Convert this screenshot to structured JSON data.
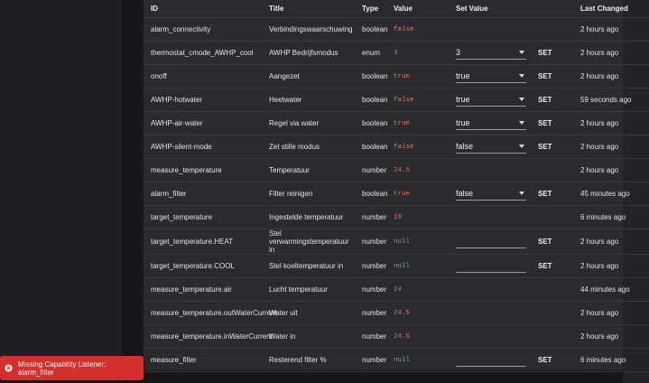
{
  "columns": {
    "id": "ID",
    "title": "Title",
    "type": "Type",
    "value": "Value",
    "set_value": "Set Value",
    "last_changed": "Last Changed"
  },
  "set_label": "SET",
  "rows": [
    {
      "id": "alarm_connectivity",
      "title": "Verbindingswaarschuwing",
      "type": "boolean",
      "value": "false",
      "select": "",
      "last": "2 hours ago"
    },
    {
      "id": "thermostat_cmode_AWHP_cool",
      "title": "AWHP Bedrijfsmodus",
      "type": "enum",
      "value": "3",
      "select": "3",
      "last": "2 hours ago"
    },
    {
      "id": "onoff",
      "title": "Aangezet",
      "type": "boolean",
      "value": "true",
      "select": "true",
      "last": "2 hours ago"
    },
    {
      "id": "AWHP-hotwater",
      "title": "Heetwater",
      "type": "boolean",
      "value": "false",
      "select": "true",
      "last": "59 seconds ago"
    },
    {
      "id": "AWHP-air-water",
      "title": "Regel via water",
      "type": "boolean",
      "value": "true",
      "select": "true",
      "last": "2 hours ago"
    },
    {
      "id": "AWHP-silent-mode",
      "title": "Zet stille modus",
      "type": "boolean",
      "value": "false",
      "select": "false",
      "last": "2 hours ago"
    },
    {
      "id": "measure_temperature",
      "title": "Temperatuur",
      "type": "number",
      "value": "24.5",
      "select": "",
      "last": "2 hours ago"
    },
    {
      "id": "alarm_filter",
      "title": "Filter reinigen",
      "type": "boolean",
      "value": "true",
      "select": "false",
      "last": "45 minutes ago"
    },
    {
      "id": "target_temperature",
      "title": "Ingestelde temperatuur",
      "type": "number",
      "value": "18",
      "select": "",
      "last": "6 minutes ago"
    },
    {
      "id": "target_temperature.HEAT",
      "title": "Stel verwarmingstemperatuur in",
      "type": "number",
      "value": "null",
      "select": "",
      "last": "2 hours ago"
    },
    {
      "id": "target_temperature.COOL",
      "title": "Stel koeltemperatuur in",
      "type": "number",
      "value": "null",
      "select": "",
      "last": "2 hours ago"
    },
    {
      "id": "measure_temperature.air",
      "title": "Lucht temperatuur",
      "type": "number",
      "value": "24",
      "select": "",
      "last": "44 minutes ago"
    },
    {
      "id": "measure_temperature.outWaterCurrent",
      "title": "Water uit",
      "type": "number",
      "value": "24.5",
      "select": "",
      "last": "2 hours ago"
    },
    {
      "id": "measure_temperature.inWaterCurrent",
      "title": "Water in",
      "type": "number",
      "value": "24.5",
      "select": "",
      "last": "2 hours ago"
    },
    {
      "id": "measure_filter",
      "title": "Resterend filter %",
      "type": "number",
      "value": "null",
      "select": "",
      "last": "6 minutes ago"
    }
  ],
  "toast": {
    "message": "Missing Capability Listener: alarm_filter",
    "icon": "error-circle-icon",
    "color": "#d32f2f"
  }
}
